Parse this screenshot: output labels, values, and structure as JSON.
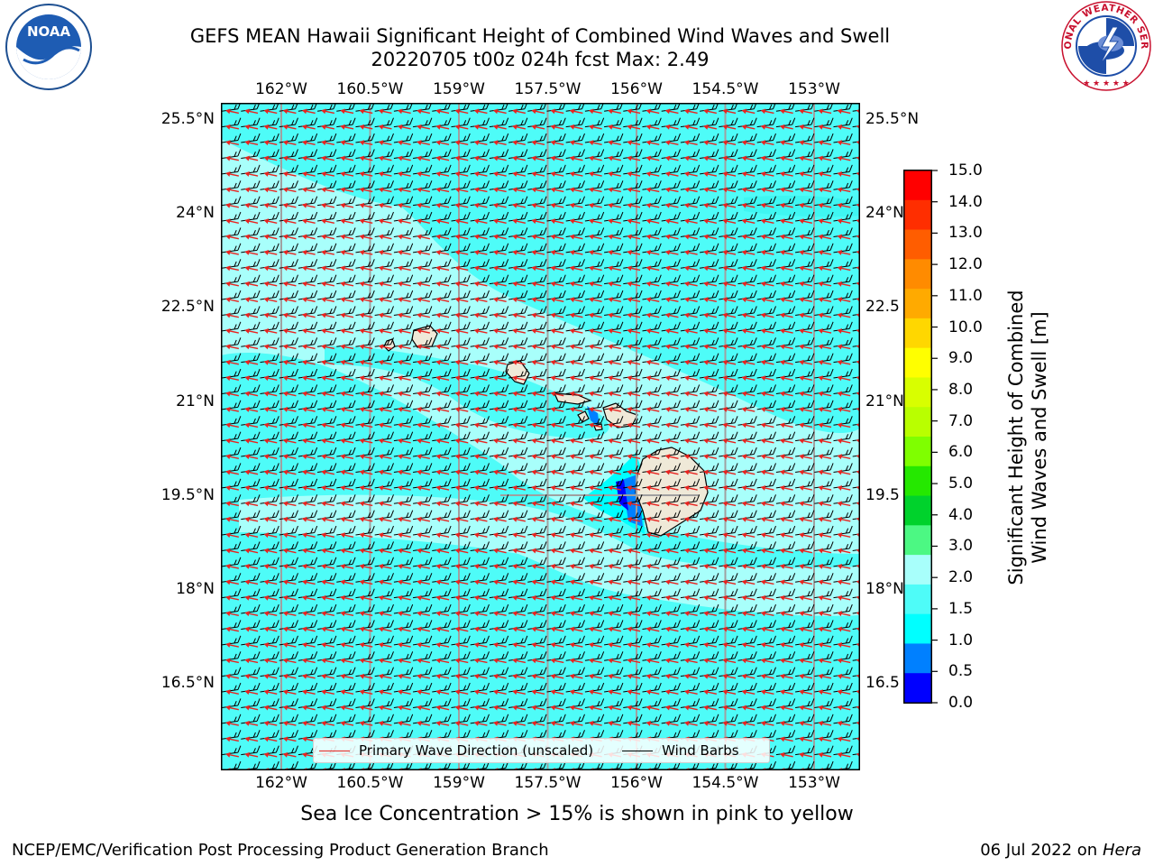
{
  "title": {
    "line1": "GEFS MEAN Hawaii Significant Height of Combined Wind Waves and Swell",
    "line2": "20220705 t00z 024h fcst   Max: 2.49"
  },
  "logos": {
    "noaa": {
      "text": "NOAA",
      "ring": "NATIONAL OCEANIC AND ATMOSPHERIC ADMINISTRATION · U.S. DEPARTMENT OF COMMERCE"
    },
    "nws": {
      "ring": "NATIONAL WEATHER SERVICE"
    }
  },
  "map": {
    "lon_ticks": [
      "162°W",
      "160.5°W",
      "159°W",
      "157.5°W",
      "156°W",
      "154.5°W",
      "153°W"
    ],
    "lat_ticks_left": [
      "25.5°N",
      "24°N",
      "22.5°N",
      "21°N",
      "19.5°N",
      "18°N",
      "16.5°N"
    ],
    "lat_ticks_right": [
      "25.5°N",
      "24°N",
      "22.5",
      "21°N",
      "19.5",
      "18°N",
      "16.5"
    ],
    "lon_range": [
      -163.0,
      -152.7
    ],
    "lat_range": [
      15.15,
      25.7
    ],
    "ocean_color": "#4efcf8",
    "land_color": "#efe9d8",
    "wave_arrow_color": "#e8231f",
    "barb_color": "#000000"
  },
  "legend": {
    "wave": "Primary Wave Direction (unscaled)",
    "barb": "Wind Barbs"
  },
  "colorbar": {
    "label_line1": "Significant Height of Combined",
    "label_line2": "Wind Waves and Swell [m]",
    "ticks": [
      "15.0",
      "14.0",
      "13.0",
      "12.0",
      "11.0",
      "10.0",
      "9.0",
      "8.0",
      "7.0",
      "6.0",
      "5.0",
      "4.0",
      "3.0",
      "2.0",
      "1.5",
      "1.0",
      "0.5",
      "0.0"
    ],
    "colors_top_to_bottom": [
      "#ff0000",
      "#ff2e00",
      "#ff5d00",
      "#ff8b00",
      "#ffaa00",
      "#ffd700",
      "#ffff00",
      "#d8ff00",
      "#b9ff00",
      "#7fff00",
      "#25e800",
      "#00d22c",
      "#4cf883",
      "#a8fffb",
      "#4efcf8",
      "#00ffff",
      "#0080ff",
      "#0000ff"
    ]
  },
  "footer": {
    "sea_ice": "Sea Ice Concentration > 15% is shown in pink to yellow",
    "branch": "NCEP/EMC/Verification Post Processing Product Generation Branch",
    "date": "06 Jul 2022 on ",
    "host": "Hera"
  }
}
